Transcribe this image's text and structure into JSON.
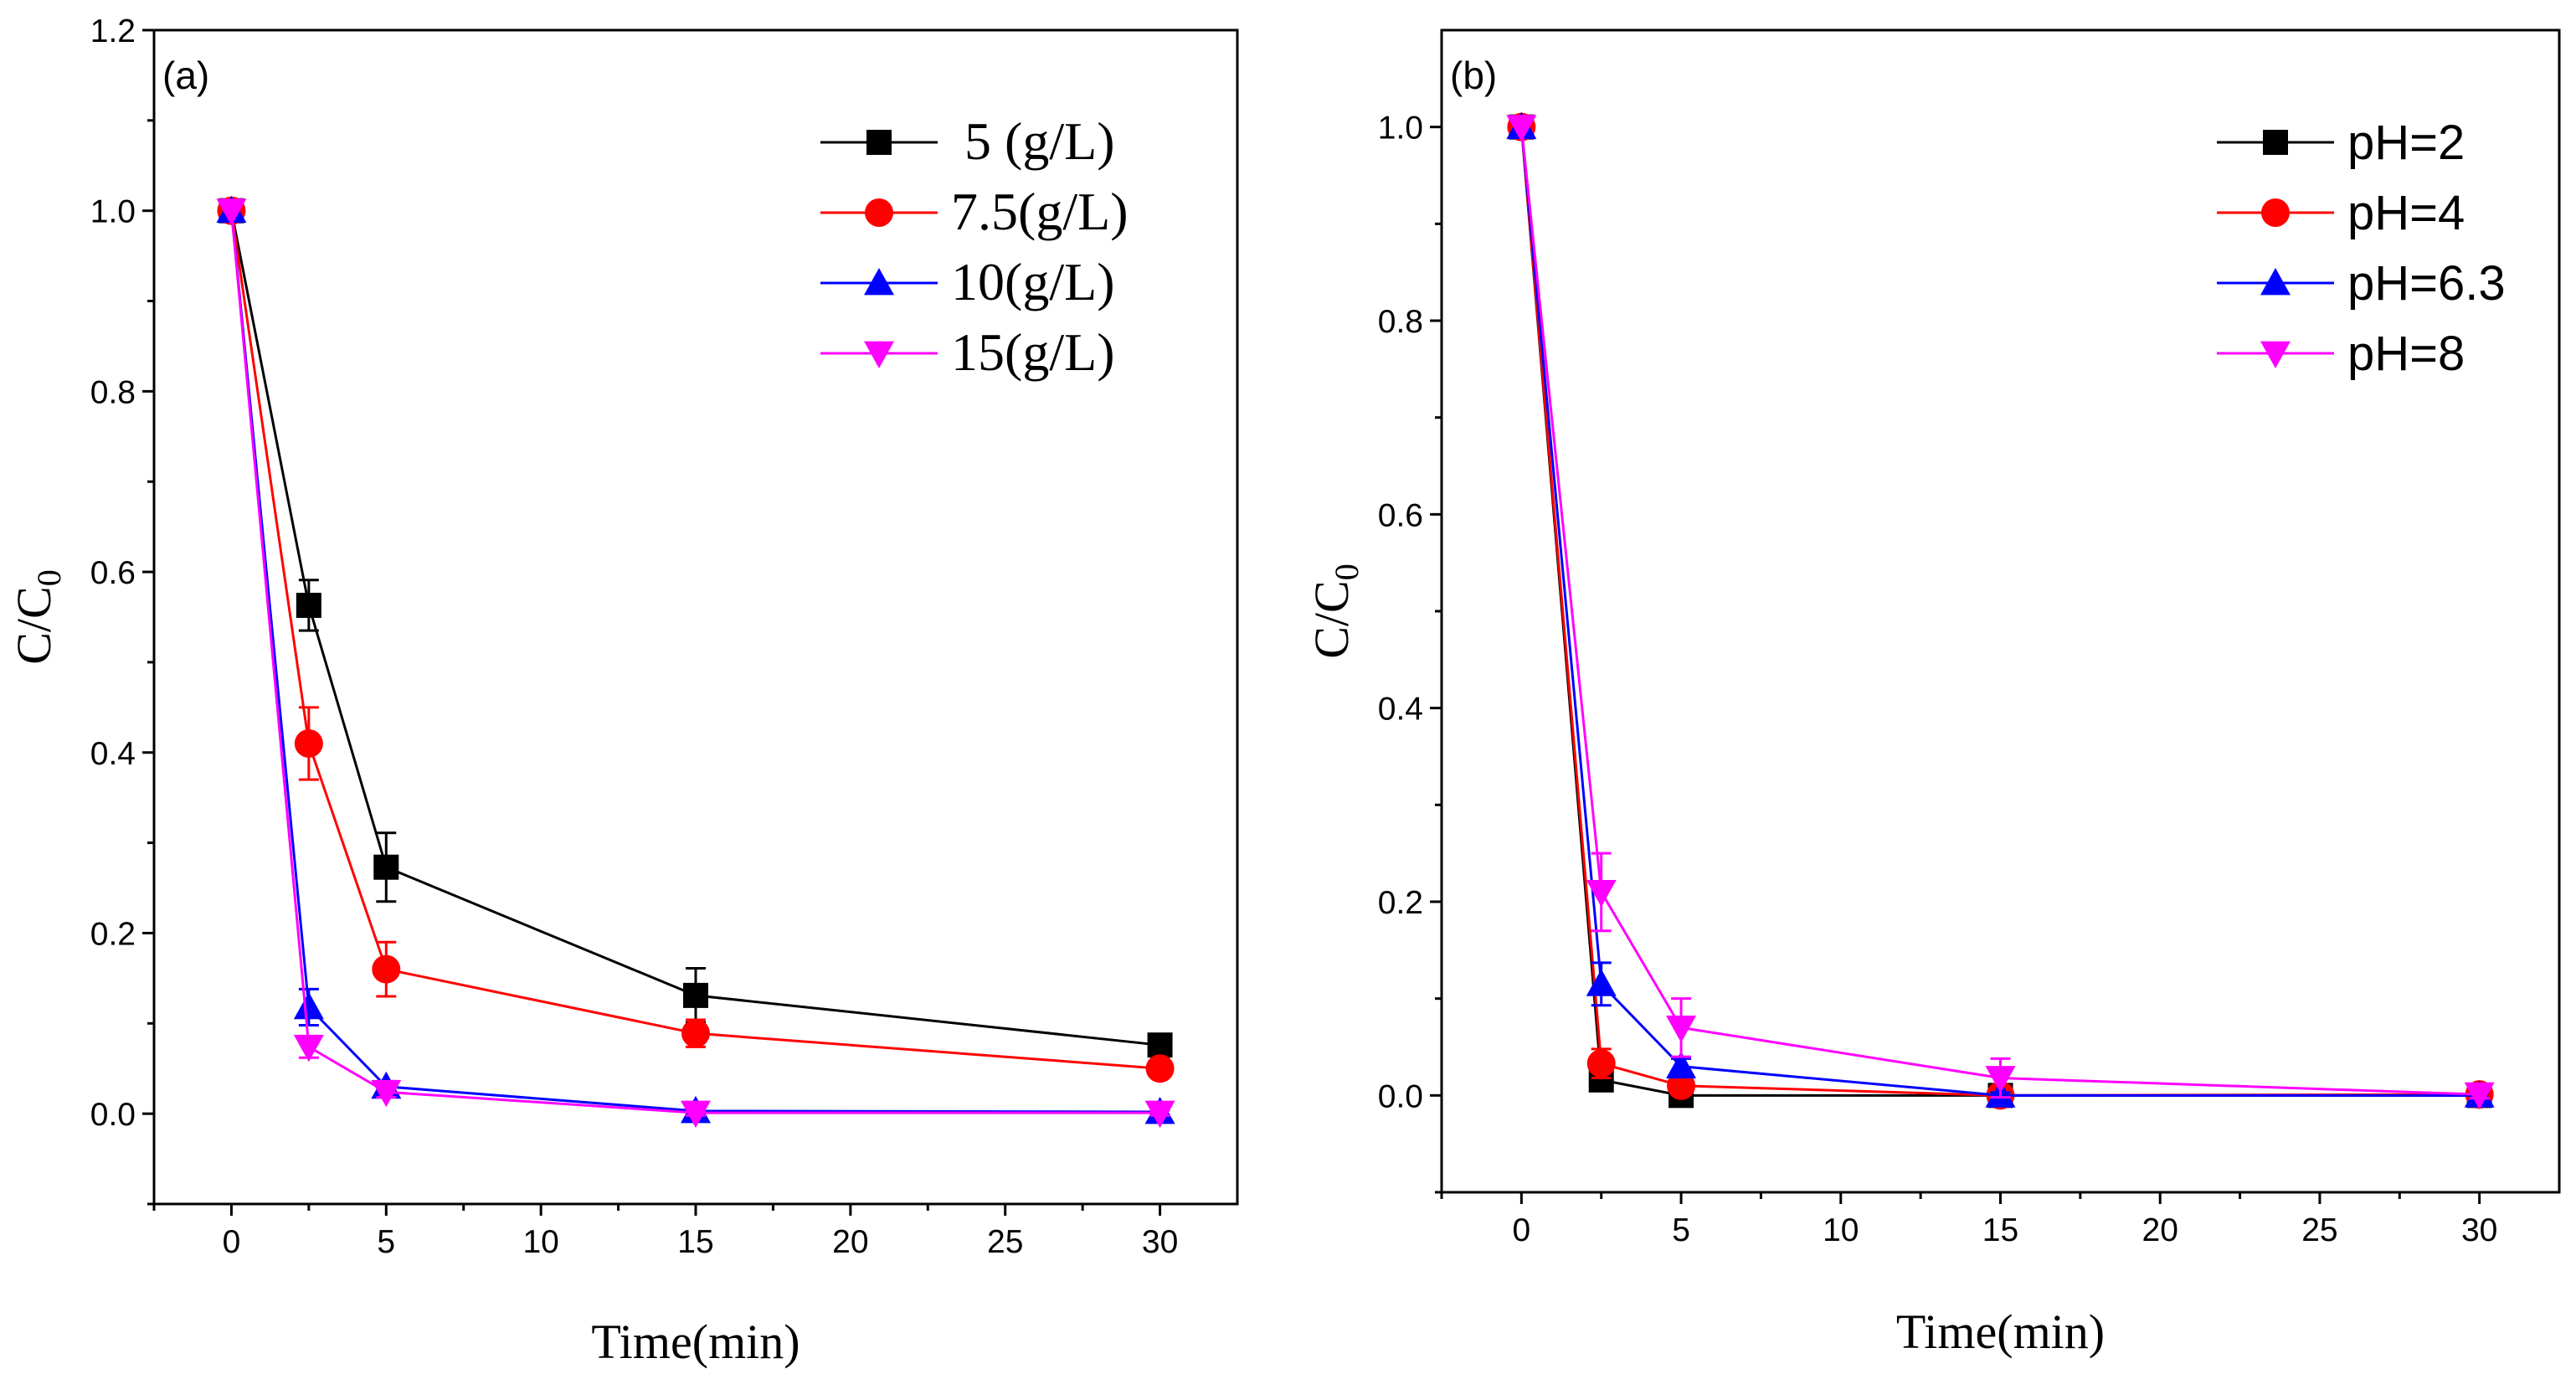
{
  "chart_data": [
    {
      "type": "line",
      "panel_label": "(a)",
      "xlabel": "Time(min)",
      "ylabel": "C/C",
      "ylabel_sub": "0",
      "xlim": [
        -2.5,
        32.5
      ],
      "ylim": [
        -0.1,
        1.2
      ],
      "xticks": [
        "0",
        "5",
        "10",
        "15",
        "20",
        "25",
        "30"
      ],
      "yticks": [
        "0.0",
        "0.2",
        "0.4",
        "0.6",
        "0.8",
        "1.0",
        "1.2"
      ],
      "legend_position": "top-right",
      "legend_font": "serif",
      "x": [
        0,
        2.5,
        5,
        15,
        30
      ],
      "series": [
        {
          "name": " 5 (g/L)",
          "color": "#000000",
          "marker": "square",
          "values": [
            1.0,
            0.563,
            0.273,
            0.131,
            0.076
          ],
          "errors": [
            0,
            0.028,
            0.038,
            0.03,
            0.006
          ]
        },
        {
          "name": "7.5(g/L)",
          "color": "#ff0000",
          "marker": "circle",
          "values": [
            1.0,
            0.41,
            0.16,
            0.089,
            0.05
          ],
          "errors": [
            0,
            0.04,
            0.03,
            0.015,
            0.008
          ]
        },
        {
          "name": "10(g/L)",
          "color": "#0000ff",
          "marker": "triangle-up",
          "values": [
            1.0,
            0.118,
            0.03,
            0.003,
            0.002
          ],
          "errors": [
            0,
            0.02,
            0.006,
            0.004,
            0.003
          ]
        },
        {
          "name": "15(g/L)",
          "color": "#ff00ff",
          "marker": "triangle-down",
          "values": [
            1.0,
            0.074,
            0.024,
            0.001,
            0.001
          ],
          "errors": [
            0,
            0.012,
            0.006,
            0.003,
            0.003
          ]
        }
      ]
    },
    {
      "type": "line",
      "panel_label": "(b)",
      "xlabel": "Time(min)",
      "ylabel": "C/C",
      "ylabel_sub": "0",
      "xlim": [
        -2.5,
        32.5
      ],
      "ylim": [
        -0.1,
        1.1
      ],
      "xticks": [
        "0",
        "5",
        "10",
        "15",
        "20",
        "25",
        "30"
      ],
      "yticks": [
        "0.0",
        "0.2",
        "0.4",
        "0.6",
        "0.8",
        "1.0"
      ],
      "legend_position": "top-right",
      "legend_font": "sans",
      "x": [
        0,
        2.5,
        5,
        15,
        30
      ],
      "series": [
        {
          "name": "pH=2",
          "color": "#000000",
          "marker": "square",
          "values": [
            1.0,
            0.016,
            0.0,
            0.0,
            0.0
          ],
          "errors": [
            0,
            0.005,
            0.003,
            0.003,
            0.002
          ]
        },
        {
          "name": "pH=4",
          "color": "#ff0000",
          "marker": "circle",
          "values": [
            1.0,
            0.033,
            0.01,
            0.0,
            0.001
          ],
          "errors": [
            0,
            0.015,
            0.006,
            0.005,
            0.003
          ]
        },
        {
          "name": "pH=6.3",
          "color": "#0000ff",
          "marker": "triangle-up",
          "values": [
            1.0,
            0.115,
            0.03,
            0.0,
            0.0
          ],
          "errors": [
            0,
            0.022,
            0.008,
            0.003,
            0.003
          ]
        },
        {
          "name": "pH=8",
          "color": "#ff00ff",
          "marker": "triangle-down",
          "values": [
            1.0,
            0.21,
            0.07,
            0.018,
            0.001
          ],
          "errors": [
            0,
            0.04,
            0.03,
            0.02,
            0.004
          ]
        }
      ]
    }
  ]
}
